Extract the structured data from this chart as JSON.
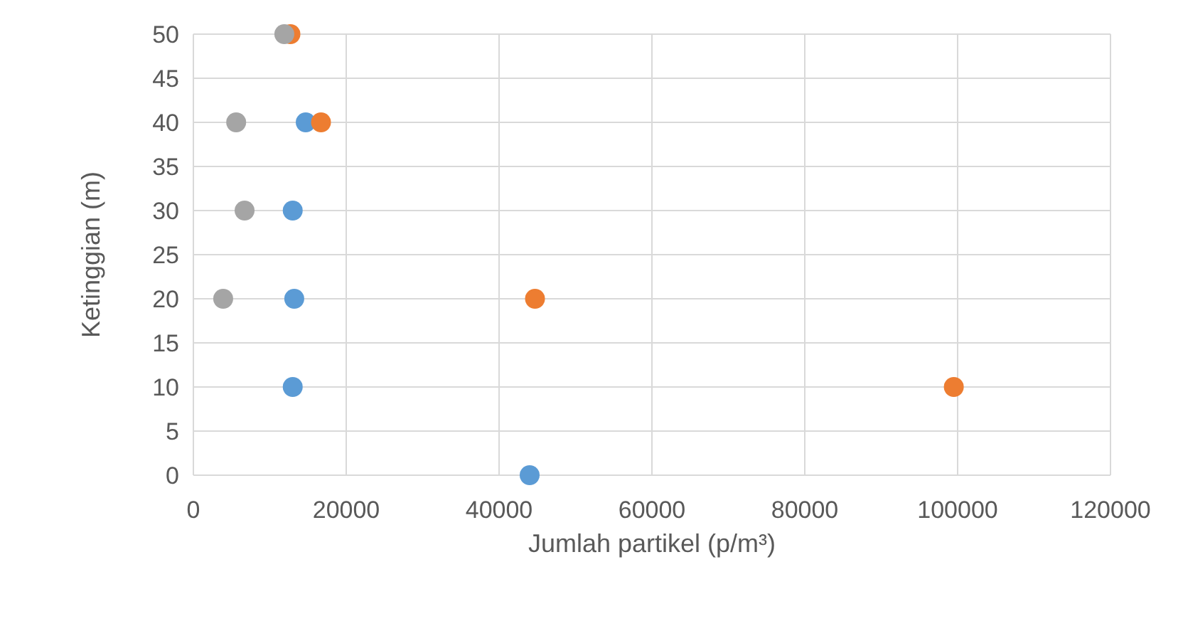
{
  "chart_data": {
    "type": "scatter",
    "xlabel": "Jumlah partikel (p/m³)",
    "ylabel": "Ketinggian (m)",
    "xlim": [
      0,
      120000
    ],
    "xticks": [
      0,
      20000,
      40000,
      60000,
      80000,
      100000,
      120000
    ],
    "ylim": [
      0,
      50
    ],
    "yticks": [
      0,
      5,
      10,
      15,
      20,
      25,
      30,
      35,
      40,
      45,
      50
    ],
    "grid": true,
    "marker": "circle",
    "series": [
      {
        "color": "#5b9bd5",
        "x": [
          44000,
          13000,
          13200,
          13000,
          14700
        ],
        "values": [
          0,
          10,
          20,
          30,
          40
        ]
      },
      {
        "color": "#ed7d31",
        "x": [
          99500,
          44700,
          16700,
          12700
        ],
        "values": [
          10,
          20,
          40,
          50
        ]
      },
      {
        "color": "#a5a5a5",
        "x": [
          3900,
          6700,
          5600,
          11900
        ],
        "values": [
          20,
          30,
          40,
          50
        ]
      }
    ]
  }
}
